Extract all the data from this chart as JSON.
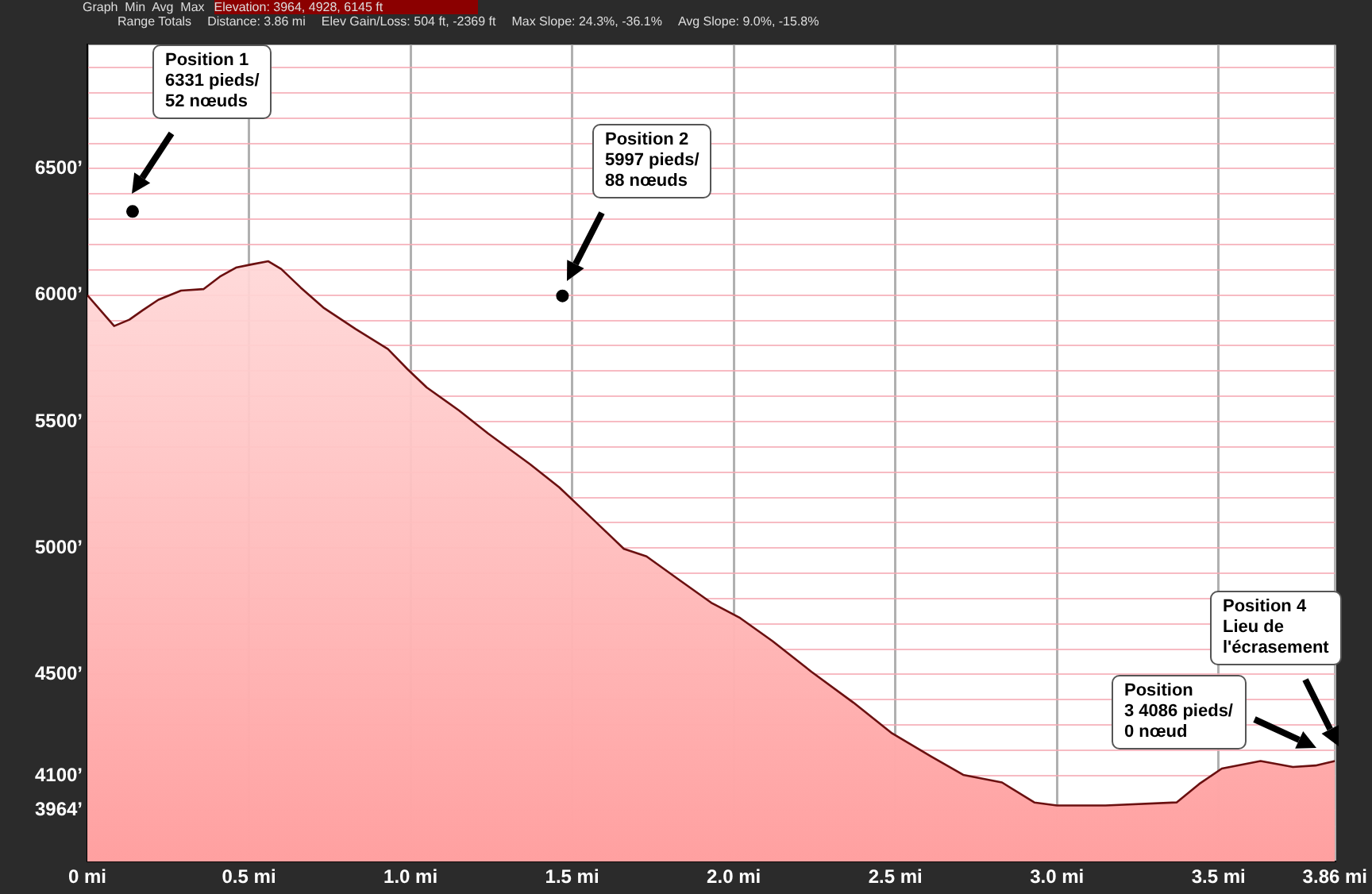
{
  "chart_data": {
    "type": "area",
    "annotations": [
      "Graph  Min  Avg  Max",
      "Elevation: 3964, 4928, 6145 ft",
      "Range Totals",
      "Distance: 3.86 mi",
      "Elev Gain/Loss: 504 ft, -2369 ft",
      "Max Slope: 24.3%, -36.1%",
      "Avg Slope: 9.0%, -15.8%",
      "Position 1\n6331 pieds/\n52 nœuds",
      "Position 2\n5997 pieds/\n88 nœuds",
      "Position\n3 4086 pieds/\n0 nœud",
      "Position 4\nLieu de\nl'écrasement"
    ],
    "x": [
      0,
      0.083,
      0.13,
      0.17,
      0.22,
      0.29,
      0.36,
      0.41,
      0.46,
      0.51,
      0.56,
      0.6,
      0.66,
      0.73,
      0.83,
      0.93,
      0.99,
      1.05,
      1.15,
      1.24,
      1.37,
      1.46,
      1.56,
      1.66,
      1.73,
      1.83,
      1.93,
      2.02,
      2.12,
      2.24,
      2.37,
      2.49,
      2.61,
      2.71,
      2.83,
      2.93,
      3.0,
      3.15,
      3.37,
      3.44,
      3.51,
      3.63,
      3.73,
      3.8,
      3.86
    ],
    "series": [
      {
        "color": "#6b1010",
        "values": [
          6000,
          5878,
          5903,
          5939,
          5982,
          6018,
          6024,
          6073,
          6109,
          6122,
          6134,
          6103,
          6030,
          5951,
          5866,
          5787,
          5708,
          5635,
          5544,
          5453,
          5331,
          5240,
          5119,
          4997,
          4967,
          4875,
          4784,
          4723,
          4632,
          4511,
          4389,
          4267,
          4176,
          4103,
          4073,
          3994,
          3982,
          3982,
          3994,
          4067,
          4128,
          4158,
          4134,
          4140,
          4158
        ]
      },
      {
        "type": "scatter",
        "color": "#000000",
        "x": [
          0.14,
          1.47
        ],
        "values": [
          6331,
          5997
        ]
      }
    ],
    "xlim": [
      0,
      3.86
    ],
    "ylim": [
      3760,
      6990
    ],
    "xticks": [
      {
        "value": 0,
        "label": "0 mi"
      },
      {
        "value": 0.5,
        "label": "0.5 mi"
      },
      {
        "value": 1,
        "label": "1.0 mi"
      },
      {
        "value": 1.5,
        "label": "1.5 mi"
      },
      {
        "value": 2,
        "label": "2.0 mi"
      },
      {
        "value": 2.5,
        "label": "2.5 mi"
      },
      {
        "value": 3,
        "label": "3.0 mi"
      },
      {
        "value": 3.5,
        "label": "3.5 mi"
      },
      {
        "value": 3.86,
        "label": "3.86 mi"
      }
    ],
    "yticks": [
      {
        "value": 3964,
        "label": "3964’"
      },
      {
        "value": 4100,
        "label": "4100’"
      },
      {
        "value": 4500,
        "label": "4500’"
      },
      {
        "value": 5000,
        "label": "5000’"
      },
      {
        "value": 5500,
        "label": "5500’"
      },
      {
        "value": 6000,
        "label": "6000’"
      },
      {
        "value": 6500,
        "label": "6500’"
      },
      {
        "value": 3800,
        "label": null
      },
      {
        "value": 3900,
        "label": null
      },
      {
        "value": 4200,
        "label": null
      },
      {
        "value": 4300,
        "label": null
      },
      {
        "value": 4400,
        "label": null
      },
      {
        "value": 4600,
        "label": null
      },
      {
        "value": 4700,
        "label": null
      },
      {
        "value": 4800,
        "label": null
      },
      {
        "value": 4900,
        "label": null
      },
      {
        "value": 5100,
        "label": null
      },
      {
        "value": 5200,
        "label": null
      },
      {
        "value": 5300,
        "label": null
      },
      {
        "value": 5400,
        "label": null
      },
      {
        "value": 5600,
        "label": null
      },
      {
        "value": 5700,
        "label": null
      },
      {
        "value": 5800,
        "label": null
      },
      {
        "value": 5900,
        "label": null
      },
      {
        "value": 6100,
        "label": null
      },
      {
        "value": 6200,
        "label": null
      },
      {
        "value": 6300,
        "label": null
      },
      {
        "value": 6400,
        "label": null
      },
      {
        "value": 6600,
        "label": null
      },
      {
        "value": 6700,
        "label": null
      },
      {
        "value": 6800,
        "label": null
      },
      {
        "value": 6900,
        "label": null
      }
    ],
    "grid": true,
    "legend": false
  }
}
